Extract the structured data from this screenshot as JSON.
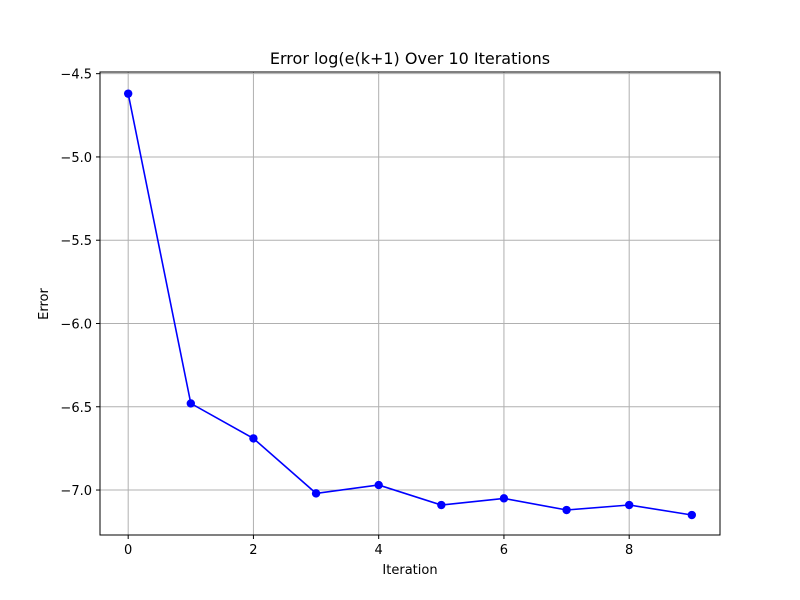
{
  "chart_data": {
    "type": "line",
    "title": "Error log(e(k+1) Over 10 Iterations",
    "xlabel": "Iteration",
    "ylabel": "Error",
    "x": [
      0,
      1,
      2,
      3,
      4,
      5,
      6,
      7,
      8,
      9
    ],
    "series": [
      {
        "values": [
          -4.62,
          -6.48,
          -6.69,
          -7.02,
          -6.97,
          -7.09,
          -7.05,
          -7.12,
          -7.09,
          -7.15
        ],
        "color": "#0000ff",
        "marker": "circle"
      }
    ],
    "xlim": [
      -0.45,
      9.45
    ],
    "ylim": [
      -7.27,
      -4.49
    ],
    "xticks": [
      0,
      2,
      4,
      6,
      8
    ],
    "xtick_labels": [
      "0",
      "2",
      "4",
      "6",
      "8"
    ],
    "yticks": [
      -4.5,
      -5.0,
      -5.5,
      -6.0,
      -6.5,
      -7.0
    ],
    "ytick_labels": [
      "−4.5",
      "−5.0",
      "−5.5",
      "−6.0",
      "−6.5",
      "−7.0"
    ],
    "grid": true,
    "grid_color": "#b0b0b0"
  }
}
